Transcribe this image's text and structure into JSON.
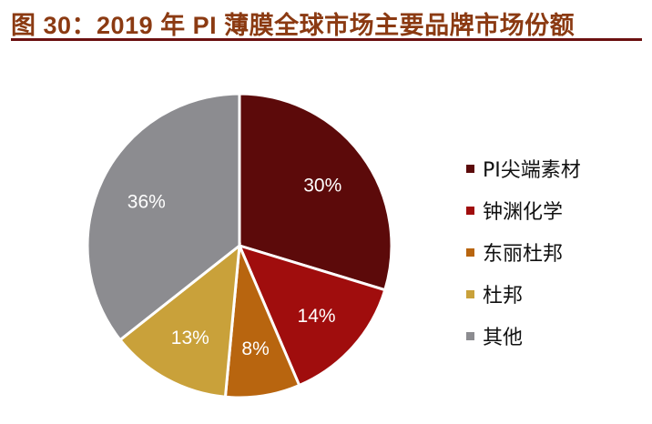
{
  "title": "图 30：2019 年 PI 薄膜全球市场主要品牌市场份额",
  "chart_data": {
    "type": "pie",
    "title": "图 30：2019 年 PI 薄膜全球市场主要品牌市场份额",
    "categories": [
      "PI尖端素材",
      "钟渊化学",
      "东丽杜邦",
      "杜邦",
      "其他"
    ],
    "values": [
      30,
      14,
      8,
      13,
      36
    ],
    "labels": [
      "30%",
      "14%",
      "8%",
      "13%",
      "36%"
    ],
    "colors": [
      "#5C0A0A",
      "#A00D0D",
      "#B8650F",
      "#C9A13A",
      "#8C8C90"
    ],
    "start_angle": "12 o'clock",
    "direction": "clockwise",
    "legend_placement": "right"
  }
}
